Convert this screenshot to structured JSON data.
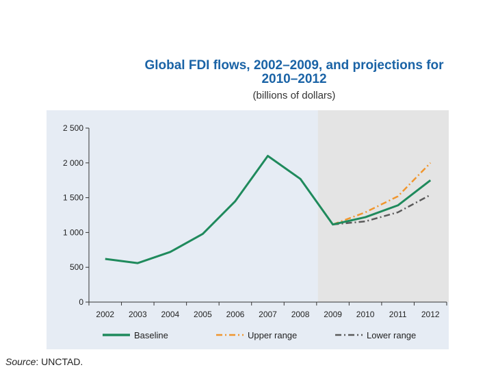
{
  "title_line1": "Global FDI flows, 2002–2009, and projections for",
  "title_line2": "2010–2012",
  "subtitle": "(billions of dollars)",
  "source_label": "Source",
  "source_text": ":   UNCTAD.",
  "colors": {
    "baseline": "#1f8a5c",
    "upper": "#f0962e",
    "lower": "#5a5a5a",
    "projection_shade": "#e4e4e4",
    "panel": "#e6ecf4"
  },
  "chart_data": {
    "type": "line",
    "title": "Global FDI flows, 2002–2009, and projections for 2010–2012",
    "subtitle": "(billions of dollars)",
    "xlabel": "",
    "ylabel": "",
    "categories": [
      "2002",
      "2003",
      "2004",
      "2005",
      "2006",
      "2007",
      "2008",
      "2009",
      "2010",
      "2011",
      "2012"
    ],
    "ylim": [
      0,
      2500
    ],
    "yticks": [
      {
        "value": 0,
        "label": "0"
      },
      {
        "value": 500,
        "label": "500"
      },
      {
        "value": 1000,
        "label": "1 000"
      },
      {
        "value": 1500,
        "label": "1 500"
      },
      {
        "value": 2000,
        "label": "2 000"
      },
      {
        "value": 2500,
        "label": "2 500"
      }
    ],
    "projection_start": "2009",
    "projection_end": "2012",
    "series": [
      {
        "name": "Baseline",
        "style": "solid",
        "color": "#1f8a5c",
        "values": [
          620,
          560,
          720,
          980,
          1450,
          2100,
          1770,
          1115,
          1220,
          1390,
          1750
        ]
      },
      {
        "name": "Upper range",
        "style": "dashdot",
        "color": "#f0962e",
        "values": [
          null,
          null,
          null,
          null,
          null,
          null,
          null,
          1115,
          1290,
          1520,
          2000
        ]
      },
      {
        "name": "Lower range",
        "style": "dashdot",
        "color": "#5a5a5a",
        "values": [
          null,
          null,
          null,
          null,
          null,
          null,
          null,
          1115,
          1160,
          1290,
          1540
        ]
      }
    ],
    "legend": {
      "placement": "bottom",
      "entries": [
        "Baseline",
        "Upper range",
        "Lower range"
      ]
    },
    "grid": false
  }
}
